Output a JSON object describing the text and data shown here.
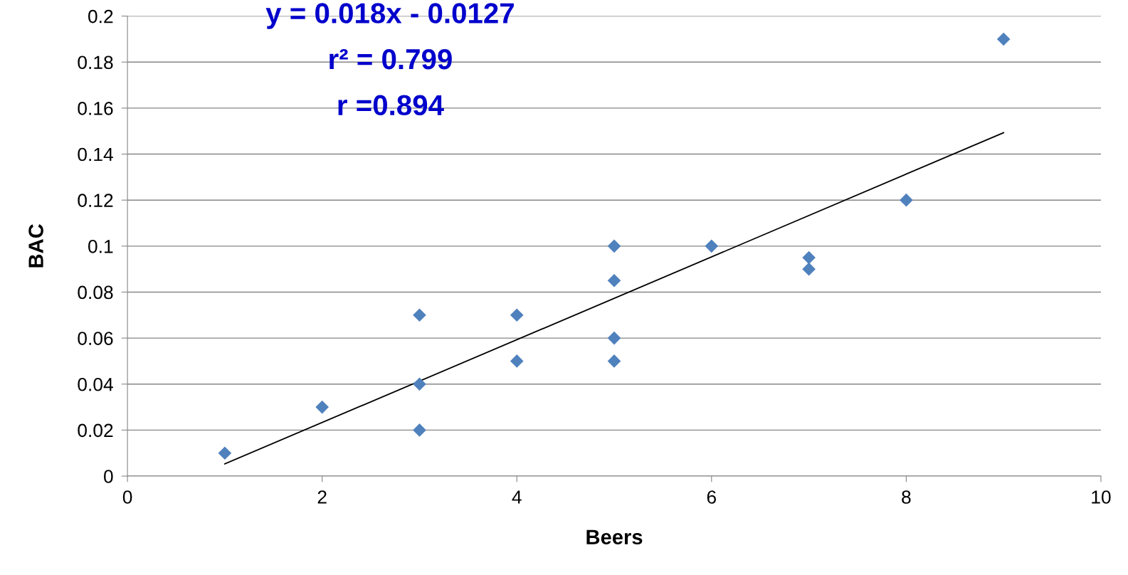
{
  "chart_data": {
    "type": "scatter",
    "xlabel": "Beers",
    "ylabel": "BAC",
    "xlim": [
      0,
      10
    ],
    "xticks": [
      0,
      2,
      4,
      6,
      8,
      10
    ],
    "ylim": [
      0,
      0.2
    ],
    "yticks": [
      0,
      0.02,
      0.04,
      0.06,
      0.08,
      0.1,
      0.12,
      0.14,
      0.16,
      0.18,
      0.2
    ],
    "grid": "y",
    "series": [
      {
        "marker": "diamond",
        "color": "#4f81bd",
        "x": [
          1,
          2,
          3,
          3,
          3,
          4,
          4,
          5,
          5,
          5,
          5,
          6,
          7,
          7,
          8,
          9
        ],
        "values": [
          0.01,
          0.03,
          0.07,
          0.04,
          0.02,
          0.07,
          0.05,
          0.1,
          0.085,
          0.06,
          0.05,
          0.1,
          0.095,
          0.09,
          0.12,
          0.19
        ]
      },
      {
        "type": "line",
        "marker": "none",
        "color": "#000000",
        "x": [
          1,
          9
        ],
        "values": [
          0.0053,
          0.1493
        ]
      }
    ],
    "annotations": [
      "y = 0.018x - 0.0127",
      "r² = 0.799",
      "r =0.894"
    ]
  }
}
